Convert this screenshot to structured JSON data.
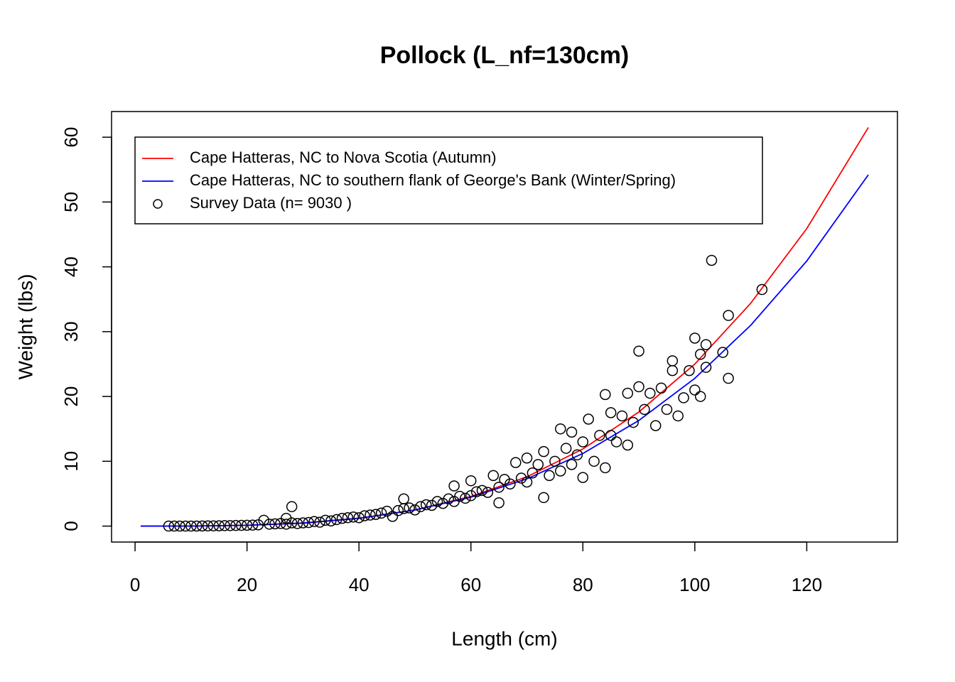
{
  "chart_data": {
    "type": "scatter",
    "title": "Pollock (L_nf=130cm)",
    "x_label": "Length (cm)",
    "y_label": "Weight (lbs)",
    "xlim": [
      -4.2,
      136.2
    ],
    "xticks": [
      0,
      20,
      40,
      60,
      80,
      100,
      120
    ],
    "ylim": [
      -2.46,
      63.96
    ],
    "yticks": [
      0,
      10,
      20,
      30,
      40,
      50,
      60
    ],
    "legend": "top-left",
    "series": [
      {
        "name": "Cape Hatteras, NC to Nova Scotia (Autumn)",
        "type": "line",
        "color": "#ff0000",
        "x": [
          1,
          10,
          20,
          30,
          40,
          50,
          60,
          70,
          80,
          90,
          100,
          110,
          120,
          131
        ],
        "values": [
          0,
          0.01,
          0.12,
          0.45,
          1.18,
          2.49,
          4.57,
          7.6,
          11.9,
          17.6,
          25,
          34.4,
          45.9,
          61.5
        ]
      },
      {
        "name": "Cape Hatteras, NC to southern flank of George's Bank (Winter/Spring)",
        "type": "line",
        "color": "#0000ff",
        "x": [
          1,
          10,
          20,
          30,
          40,
          50,
          60,
          70,
          80,
          90,
          100,
          110,
          120,
          131
        ],
        "values": [
          0,
          0.01,
          0.13,
          0.48,
          1.22,
          2.49,
          4.46,
          7.29,
          11.2,
          16.3,
          22.8,
          31,
          40.9,
          54.2
        ]
      },
      {
        "name": "Survey Data (n= 9030 )",
        "type": "scatter",
        "color": "#000000",
        "x": [
          6,
          7,
          8,
          9,
          10,
          11,
          12,
          13,
          14,
          15,
          16,
          17,
          18,
          19,
          20,
          21,
          22,
          23,
          24,
          25,
          26,
          27,
          27,
          28,
          28,
          29,
          30,
          31,
          32,
          33,
          34,
          35,
          36,
          37,
          38,
          39,
          40,
          41,
          42,
          43,
          44,
          45,
          46,
          47,
          48,
          48,
          49,
          50,
          51,
          52,
          53,
          54,
          55,
          56,
          57,
          57,
          58,
          59,
          60,
          60,
          61,
          62,
          63,
          64,
          65,
          65,
          66,
          67,
          68,
          69,
          70,
          70,
          71,
          72,
          73,
          73,
          74,
          75,
          76,
          76,
          77,
          78,
          78,
          79,
          80,
          80,
          81,
          82,
          83,
          84,
          84,
          85,
          85,
          86,
          87,
          88,
          88,
          89,
          90,
          90,
          91,
          92,
          93,
          94,
          95,
          96,
          96,
          97,
          98,
          99,
          100,
          100,
          101,
          101,
          102,
          102,
          103,
          105,
          106,
          106,
          112
        ],
        "values": [
          0,
          0,
          0,
          0,
          0,
          0.01,
          0.02,
          0.03,
          0.04,
          0.05,
          0.07,
          0.08,
          0.1,
          0.11,
          0.13,
          0.15,
          0.2,
          0.9,
          0.3,
          0.35,
          0.4,
          1.2,
          0.3,
          3,
          0.5,
          0.4,
          0.5,
          0.55,
          0.7,
          0.6,
          0.9,
          0.8,
          1.0,
          1.2,
          1.3,
          1.4,
          1.3,
          1.6,
          1.7,
          1.8,
          2.0,
          2.3,
          1.5,
          2.4,
          4.2,
          2.7,
          2.8,
          2.5,
          3.0,
          3.3,
          3.2,
          3.8,
          3.5,
          4.2,
          6.2,
          3.8,
          4.6,
          4.3,
          7,
          4.7,
          5.3,
          5.5,
          5.2,
          7.8,
          3.6,
          6.0,
          7.2,
          6.5,
          9.8,
          7.4,
          10.5,
          6.8,
          8.2,
          9.5,
          4.4,
          11.5,
          7.8,
          10,
          15,
          8.5,
          12,
          14.5,
          9.5,
          11,
          7.5,
          13,
          16.5,
          10,
          14,
          20.3,
          9,
          14,
          17.5,
          13,
          17,
          20.5,
          12.5,
          16,
          27,
          21.5,
          18,
          20.5,
          15.5,
          21.3,
          18,
          25.5,
          24,
          17,
          19.8,
          24,
          29,
          21,
          20,
          26.5,
          28,
          24.5,
          41,
          26.8,
          32.5,
          22.8,
          36.5
        ]
      }
    ]
  }
}
